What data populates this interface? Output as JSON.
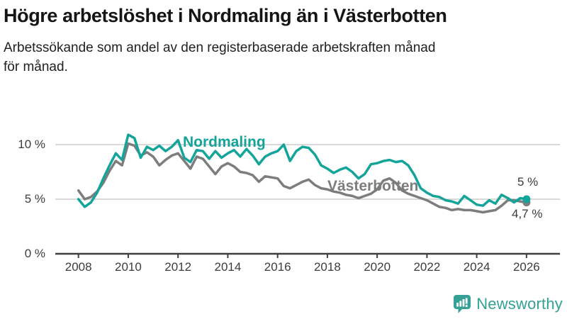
{
  "header": {
    "title": "Högre arbetslöshet i Nordmaling än i Västerbotten",
    "subtitle_lines": [
      "Arbetssökande som andel av den registerbaserade arbetskraften månad",
      "för månad."
    ]
  },
  "branding": {
    "name": "Newsworthy",
    "color": "#35a095",
    "icon": "bar-chart-speech-bubble"
  },
  "chart_data": {
    "type": "line",
    "title": "Högre arbetslöshet i Nordmaling än i Västerbotten",
    "subtitle": "Arbetssökande som andel av den registerbaserade arbetskraften månad för månad.",
    "x_start": 2008,
    "x_step_years": 0.25,
    "x_tick_years": [
      2008,
      2010,
      2012,
      2014,
      2016,
      2018,
      2020,
      2022,
      2024,
      2026
    ],
    "y_ticks": [
      {
        "value": 0,
        "label": "0 %"
      },
      {
        "value": 5,
        "label": "5 %"
      },
      {
        "value": 10,
        "label": "10 %"
      }
    ],
    "ylim": [
      0,
      12
    ],
    "grid": "horizontal",
    "legend_position": "inline-labels",
    "colors": {
      "grid": "#d9d9d9",
      "axis": "#3f3f3f",
      "tick_text": "#3c3c3c"
    },
    "series": [
      {
        "name": "Nordmaling",
        "color": "#14a49a",
        "end_label": "5 %",
        "values": [
          5.0,
          4.3,
          4.7,
          5.6,
          6.9,
          8.1,
          9.2,
          8.6,
          10.9,
          10.6,
          8.8,
          9.8,
          9.5,
          9.9,
          9.4,
          9.8,
          10.4,
          8.8,
          8.4,
          9.5,
          9.4,
          8.7,
          9.4,
          8.8,
          9.2,
          9.5,
          8.9,
          9.6,
          9.0,
          8.2,
          8.9,
          9.2,
          9.4,
          10.0,
          8.5,
          9.4,
          9.8,
          9.7,
          9.1,
          8.1,
          7.8,
          7.4,
          7.7,
          7.9,
          7.5,
          6.9,
          7.3,
          8.2,
          8.3,
          8.5,
          8.6,
          8.4,
          8.5,
          8.1,
          7.2,
          6.0,
          5.6,
          5.3,
          5.2,
          4.9,
          4.8,
          4.6,
          5.3,
          4.9,
          4.5,
          4.4,
          4.9,
          4.6,
          5.4,
          5.1,
          4.7,
          5.1,
          5.0
        ]
      },
      {
        "name": "Västerbotten",
        "color": "#7d7d7d",
        "end_label": "4,7 %",
        "values": [
          5.8,
          5.0,
          5.2,
          5.7,
          6.5,
          7.6,
          8.5,
          8.1,
          10.1,
          9.9,
          9.0,
          9.3,
          8.9,
          8.1,
          8.6,
          9.0,
          9.2,
          8.5,
          7.8,
          8.9,
          8.7,
          8.0,
          7.3,
          8.0,
          8.3,
          8.0,
          7.5,
          7.4,
          7.2,
          6.6,
          7.1,
          7.0,
          6.9,
          6.2,
          6.0,
          6.3,
          6.6,
          6.8,
          6.3,
          6.0,
          5.9,
          5.7,
          5.6,
          5.4,
          5.3,
          5.1,
          5.3,
          5.5,
          5.9,
          6.7,
          6.9,
          6.5,
          5.8,
          5.5,
          5.3,
          5.1,
          4.9,
          4.6,
          4.3,
          4.2,
          4.0,
          4.1,
          4.0,
          4.0,
          3.9,
          3.8,
          3.9,
          4.0,
          4.4,
          4.9,
          4.9,
          4.8,
          4.7
        ]
      }
    ]
  }
}
